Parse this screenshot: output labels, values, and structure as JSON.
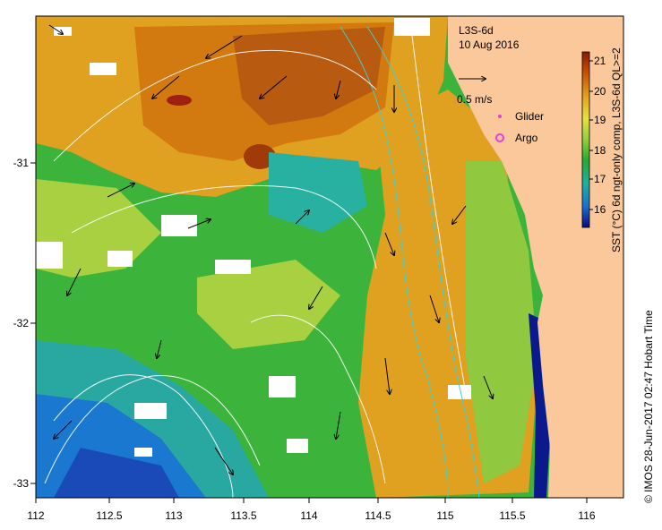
{
  "product": "L3S-6d",
  "date": "10 Aug 2016",
  "vector_scale_label": "0.5 m/s",
  "legend": [
    {
      "label": "Glider",
      "color": "#e040e0",
      "marker": "dot-icon"
    },
    {
      "label": "Argo",
      "color": "#e040e0",
      "marker": "gear-ring-icon"
    }
  ],
  "colorbar": {
    "title": "SST (°C) 6d ngt-only comp, L3S-6d QL>=2",
    "ticks": [
      "21",
      "20",
      "19",
      "18",
      "17",
      "16"
    ]
  },
  "credit": "© IMOS 28-Jun-2017 02:47 Hobart Time",
  "axes": {
    "x_ticks": [
      "112",
      "112.5",
      "113",
      "113.5",
      "114",
      "114.5",
      "115",
      "115.5",
      "116"
    ],
    "y_ticks": [
      "-31",
      "-32",
      "-33"
    ]
  },
  "colors": {
    "land": "#fac89b",
    "sst_warm": "#d27a10",
    "sst_mid": "#3cb43c",
    "sst_cool": "#1a78d0",
    "sst_cold": "#0a1a8c",
    "isobath": "#40d0d0"
  }
}
